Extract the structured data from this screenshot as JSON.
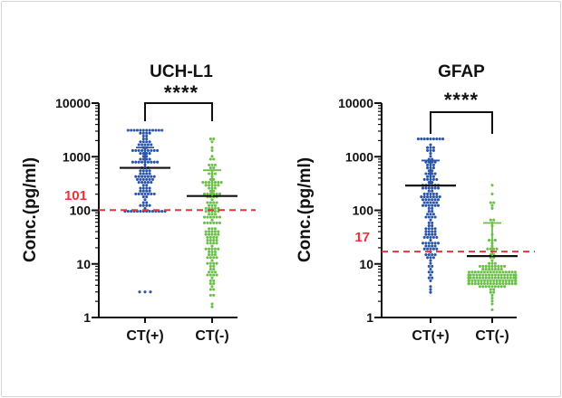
{
  "colors": {
    "ct_pos": "#2b55a8",
    "ct_neg": "#6cc04a",
    "threshold": "#e8333a",
    "axis": "#111111"
  },
  "chart_data": [
    {
      "type": "scatter",
      "title": "UCH-L1",
      "ylabel": "Conc.(pg/ml)",
      "yscale": "log",
      "ylim": [
        1,
        10000
      ],
      "yticks": [
        "10000",
        "1000",
        "100",
        "10",
        "1"
      ],
      "categories": [
        "CT(+)",
        "CT(-)"
      ],
      "significance": "****",
      "threshold": {
        "value": 101,
        "label": "101"
      },
      "series": [
        {
          "category": "CT(+)",
          "mean": 620,
          "sd_upper": 1480,
          "range": [
            100,
            3300
          ],
          "outliers": [
            3,
            3,
            3
          ]
        },
        {
          "category": "CT(-)",
          "mean": 185,
          "sd_upper": 560,
          "range": [
            1.5,
            2200
          ],
          "outliers": []
        }
      ]
    },
    {
      "type": "scatter",
      "title": "GFAP",
      "ylabel": "Conc.(pg/ml)",
      "yscale": "log",
      "ylim": [
        1,
        10000
      ],
      "yticks": [
        "10000",
        "1000",
        "100",
        "10",
        "1"
      ],
      "categories": [
        "CT(+)",
        "CT(-)"
      ],
      "significance": "****",
      "threshold": {
        "value": 17,
        "label": "17"
      },
      "series": [
        {
          "category": "CT(+)",
          "mean": 290,
          "sd_upper": 850,
          "range": [
            2.7,
            2200
          ],
          "outliers": []
        },
        {
          "category": "CT(-)",
          "mean": 14,
          "sd_upper": 58,
          "range": [
            1.4,
            450
          ],
          "outliers": []
        }
      ]
    }
  ]
}
